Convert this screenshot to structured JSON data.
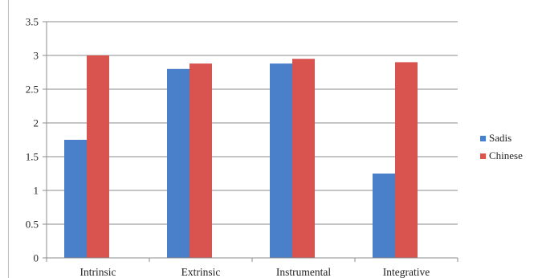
{
  "chart_data": {
    "type": "bar",
    "categories": [
      "Intrinsic",
      "Extrinsic",
      "Instrumental",
      "Integrative"
    ],
    "series": [
      {
        "name": "Sadis",
        "color": "#4a7fca",
        "values": [
          1.75,
          2.8,
          2.88,
          1.25
        ]
      },
      {
        "name": "Chinese",
        "color": "#d9534f",
        "values": [
          3.0,
          2.88,
          2.95,
          2.9
        ]
      }
    ],
    "title": "",
    "xlabel": "",
    "ylabel": "",
    "ylim": [
      0,
      3.5
    ],
    "yticks": [
      "0",
      "0.5",
      "1",
      "1.5",
      "2",
      "2.5",
      "3",
      "3.5"
    ],
    "grid": true,
    "legend_position": "right"
  }
}
